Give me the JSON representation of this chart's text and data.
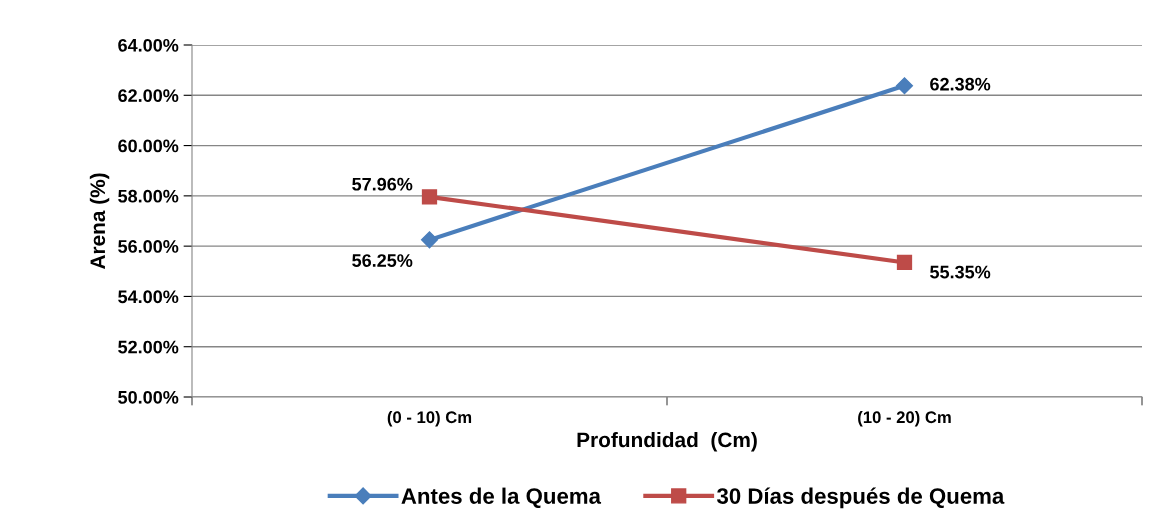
{
  "chart_data": {
    "type": "line",
    "xlabel": "Profundidad  (Cm)",
    "ylabel": "Arena (%)",
    "categories": [
      "(0 - 10) Cm",
      "(10 - 20) Cm"
    ],
    "series": [
      {
        "name": "Antes de la Quema",
        "color": "#4a7ebb",
        "marker": "diamond",
        "values": [
          56.25,
          62.38
        ],
        "value_labels": [
          "56.25%",
          "62.38%"
        ]
      },
      {
        "name": "30 Días después de Quema",
        "color": "#be4b48",
        "marker": "square",
        "values": [
          57.96,
          55.35
        ],
        "value_labels": [
          "57.96%",
          "55.35%"
        ]
      }
    ],
    "ylim": [
      50,
      64
    ],
    "yticks": [
      {
        "value": 50,
        "label": "50.00%"
      },
      {
        "value": 52,
        "label": "52.00%"
      },
      {
        "value": 54,
        "label": "54.00%"
      },
      {
        "value": 56,
        "label": "56.00%"
      },
      {
        "value": 58,
        "label": "58.00%"
      },
      {
        "value": 60,
        "label": "60.00%"
      },
      {
        "value": 62,
        "label": "62.00%"
      },
      {
        "value": 64,
        "label": "64.00%"
      }
    ],
    "grid": "y",
    "legend": "bottom",
    "line_style": "solid"
  }
}
